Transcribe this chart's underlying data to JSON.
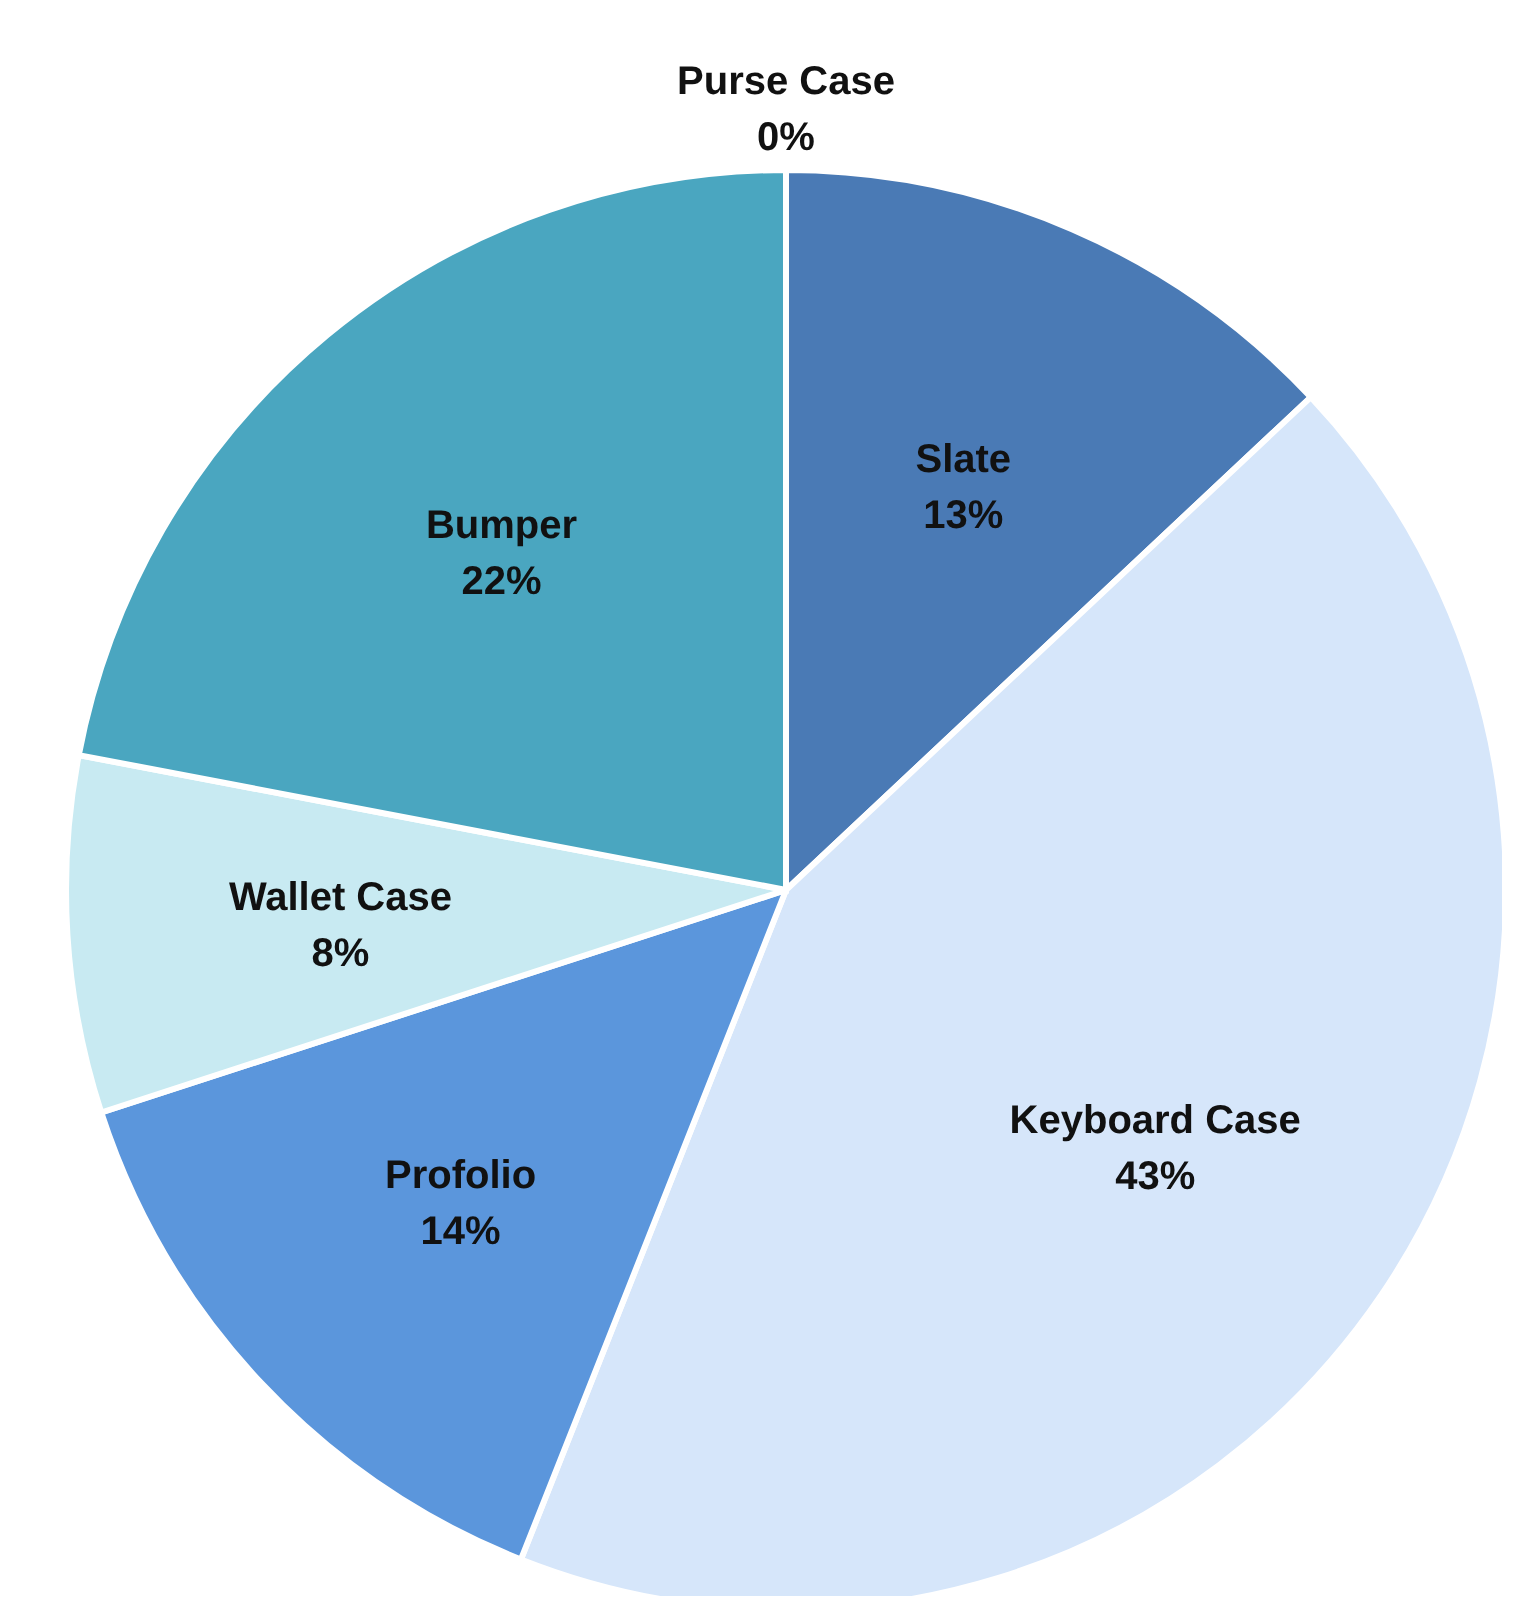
{
  "chart_data": {
    "type": "pie",
    "categories": [
      "Slate",
      "Keyboard Case",
      "Profolio",
      "Wallet Case",
      "Bumper",
      "Purse Case"
    ],
    "values": [
      13,
      43,
      14,
      8,
      22,
      0
    ],
    "value_labels": [
      "13%",
      "43%",
      "14%",
      "8%",
      "22%",
      "0%"
    ],
    "colors": [
      "#4a7ab5",
      "#d6e6fa",
      "#5b96dc",
      "#c8eaf2",
      "#4aa6c0",
      "#1f3f6a"
    ]
  }
}
